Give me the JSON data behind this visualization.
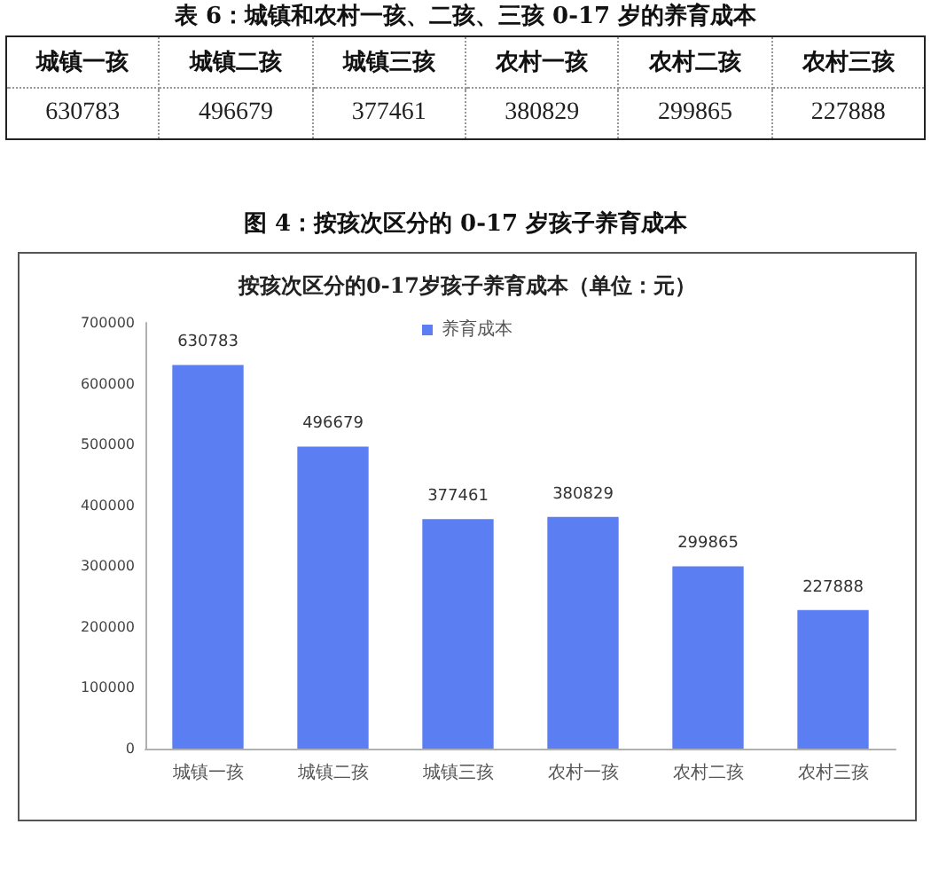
{
  "chart_data": {
    "type": "bar",
    "title": "按孩次区分的0-17岁孩子养育成本（单位：元）",
    "annotations": [
      "表 6：城镇和农村一孩、二孩、三孩 0-17 岁的养育成本",
      "图 4：按孩次区分的 0-17 岁孩子养育成本"
    ],
    "categories": [
      "城镇一孩",
      "城镇二孩",
      "城镇三孩",
      "农村一孩",
      "农村二孩",
      "农村三孩"
    ],
    "series": [
      {
        "name": "养育成本",
        "color": "#5b7ff2",
        "values": [
          630783,
          496679,
          377461,
          380829,
          299865,
          227888
        ],
        "value_labels": [
          "630783",
          "496679",
          "377461",
          "380829",
          "299865",
          "227888"
        ]
      }
    ],
    "ylim": [
      0,
      700000
    ],
    "yticks": [
      0,
      100000,
      200000,
      300000,
      400000,
      500000,
      600000,
      700000
    ],
    "grid": false,
    "legend": "top"
  }
}
